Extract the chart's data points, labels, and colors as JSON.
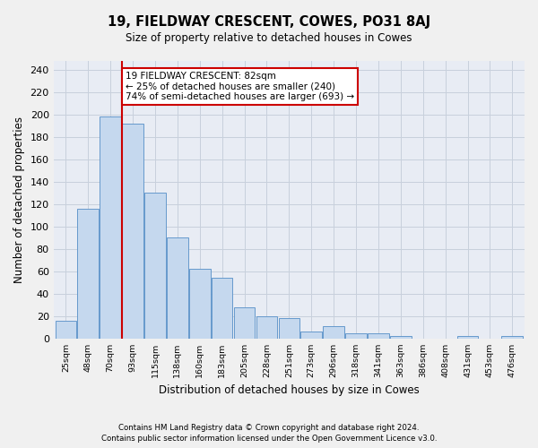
{
  "title": "19, FIELDWAY CRESCENT, COWES, PO31 8AJ",
  "subtitle": "Size of property relative to detached houses in Cowes",
  "xlabel": "Distribution of detached houses by size in Cowes",
  "ylabel": "Number of detached properties",
  "categories": [
    "25sqm",
    "48sqm",
    "70sqm",
    "93sqm",
    "115sqm",
    "138sqm",
    "160sqm",
    "183sqm",
    "205sqm",
    "228sqm",
    "251sqm",
    "273sqm",
    "296sqm",
    "318sqm",
    "341sqm",
    "363sqm",
    "386sqm",
    "408sqm",
    "431sqm",
    "453sqm",
    "476sqm"
  ],
  "values": [
    16,
    116,
    198,
    192,
    130,
    90,
    62,
    54,
    28,
    20,
    18,
    6,
    11,
    5,
    5,
    2,
    0,
    0,
    2,
    0,
    2
  ],
  "bar_color": "#c5d8ee",
  "bar_edge_color": "#6699cc",
  "vline_color": "#cc0000",
  "annotation_box_color": "#ffffff",
  "annotation_box_edge": "#cc0000",
  "annotation_label": "19 FIELDWAY CRESCENT: 82sqm",
  "annotation_line1": "← 25% of detached houses are smaller (240)",
  "annotation_line2": "74% of semi-detached houses are larger (693) →",
  "ylim": [
    0,
    248
  ],
  "yticks": [
    0,
    20,
    40,
    60,
    80,
    100,
    120,
    140,
    160,
    180,
    200,
    220,
    240
  ],
  "grid_color": "#c8d0dc",
  "bg_color": "#e8ecf4",
  "fig_bg_color": "#f0f0f0",
  "footnote1": "Contains HM Land Registry data © Crown copyright and database right 2024.",
  "footnote2": "Contains public sector information licensed under the Open Government Licence v3.0."
}
